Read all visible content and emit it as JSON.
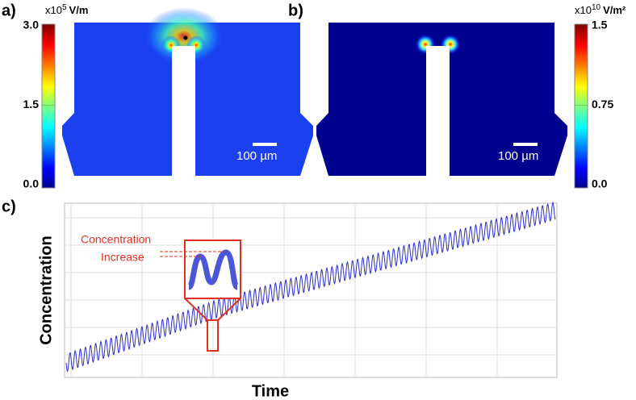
{
  "panels": [
    {
      "label": "a)",
      "colorbar": {
        "prefix": "x10",
        "exponent": "5",
        "unit": "V/m",
        "range": [
          0,
          3
        ],
        "ticks": [
          {
            "value": 3,
            "label": "3.0"
          },
          1.5,
          {
            "value": 0,
            "label": "0.0"
          }
        ]
      },
      "scale_bar": "100 µm"
    },
    {
      "label": "b)",
      "colorbar": {
        "prefix": "x10",
        "exponent": "10",
        "unit": "V/m²",
        "range": [
          0,
          1.5
        ],
        "ticks": [
          1.5,
          0.75,
          {
            "value": 0,
            "label": "0.0"
          }
        ]
      },
      "scale_bar": "100 µm"
    },
    {
      "label": "c)",
      "y_label": "Concentration",
      "x_label": "Time",
      "annotation": [
        "Concentration",
        "Increase"
      ]
    }
  ]
}
